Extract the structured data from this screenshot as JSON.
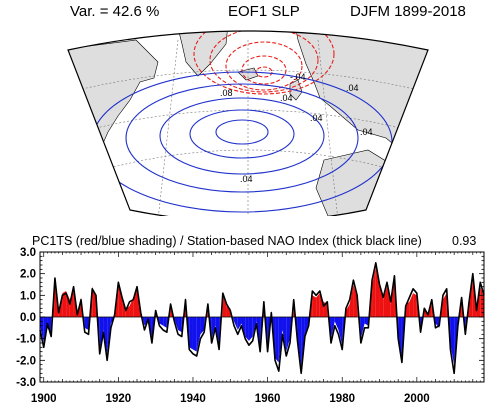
{
  "header": {
    "variance": "Var. = 42.6 %",
    "title": "EOF1 SLP",
    "period": "DJFM 1899-2018"
  },
  "map": {
    "contour_labels": [
      "-.04",
      ".04",
      ".08",
      ".04",
      ".04",
      ".04",
      ".04"
    ],
    "colors": {
      "land": "#dedede",
      "negative_contours": "#e8201c",
      "positive_contours": "#2233cc"
    }
  },
  "timeseries": {
    "title": "PC1TS (red/blue shading) / Station-based NAO Index (thick black line)",
    "correlation": "0.93"
  },
  "chart_data": {
    "type": "area",
    "title": "PC1TS (red/blue shading) / Station-based NAO Index (thick black line)",
    "xlabel": "",
    "ylabel": "",
    "xlim": [
      1899,
      2018
    ],
    "ylim": [
      -3.0,
      3.0
    ],
    "x_ticks": [
      "1900",
      "1920",
      "1940",
      "1960",
      "1980",
      "2000"
    ],
    "y_ticks": [
      "3.0",
      "2.0",
      "1.0",
      "0.0",
      "-1.0",
      "-2.0",
      "-3.0"
    ],
    "grid": false,
    "colors": {
      "positive": "#ee1111",
      "negative": "#1111ee",
      "line": "#000000"
    },
    "x": [
      1899,
      1900,
      1901,
      1902,
      1903,
      1904,
      1905,
      1906,
      1907,
      1908,
      1909,
      1910,
      1911,
      1912,
      1913,
      1914,
      1915,
      1916,
      1917,
      1918,
      1919,
      1920,
      1921,
      1922,
      1923,
      1924,
      1925,
      1926,
      1927,
      1928,
      1929,
      1930,
      1931,
      1932,
      1933,
      1934,
      1935,
      1936,
      1937,
      1938,
      1939,
      1940,
      1941,
      1942,
      1943,
      1944,
      1945,
      1946,
      1947,
      1948,
      1949,
      1950,
      1951,
      1952,
      1953,
      1954,
      1955,
      1956,
      1957,
      1958,
      1959,
      1960,
      1961,
      1962,
      1963,
      1964,
      1965,
      1966,
      1967,
      1968,
      1969,
      1970,
      1971,
      1972,
      1973,
      1974,
      1975,
      1976,
      1977,
      1978,
      1979,
      1980,
      1981,
      1982,
      1983,
      1984,
      1985,
      1986,
      1987,
      1988,
      1989,
      1990,
      1991,
      1992,
      1993,
      1994,
      1995,
      1996,
      1997,
      1998,
      1999,
      2000,
      2001,
      2002,
      2003,
      2004,
      2005,
      2006,
      2007,
      2008,
      2009,
      2010,
      2011,
      2012,
      2013,
      2014,
      2015,
      2016,
      2017,
      2018
    ],
    "series": [
      {
        "name": "PC1TS",
        "values": [
          -0.4,
          -1.2,
          -0.5,
          -0.8,
          1.6,
          0.3,
          1.1,
          1.2,
          0.8,
          1.3,
          0.2,
          0.9,
          -0.5,
          -0.6,
          1.4,
          0.9,
          -1.5,
          -0.6,
          -1.7,
          -0.3,
          0.0,
          1.5,
          1.0,
          0.4,
          0.5,
          0.9,
          1.3,
          0.3,
          -0.4,
          -0.2,
          -1.0,
          0.2,
          -0.3,
          -0.4,
          -0.5,
          0.4,
          -0.1,
          -0.6,
          -0.7,
          0.9,
          -1.4,
          -1.5,
          -1.6,
          -0.8,
          -0.6,
          0.5,
          -1.0,
          -0.4,
          -1.3,
          1.0,
          0.5,
          0.4,
          -0.2,
          -0.6,
          -0.3,
          -0.9,
          -1.1,
          -0.9,
          -0.2,
          -1.4,
          0.6,
          -1.4,
          0.3,
          -1.9,
          -2.1,
          -0.6,
          -1.6,
          -1.0,
          0.6,
          -0.9,
          -2.3,
          -0.8,
          -0.3,
          1.0,
          0.9,
          1.1,
          0.7,
          0.6,
          -1.0,
          -0.2,
          -0.6,
          -1.3,
          0.3,
          0.6,
          1.5,
          0.9,
          -1.0,
          -0.3,
          -0.4,
          1.5,
          2.3,
          1.6,
          0.8,
          1.4,
          0.6,
          1.7,
          -0.8,
          -2.0,
          0.6,
          0.7,
          1.1,
          1.0,
          -0.6,
          0.3,
          0.2,
          0.6,
          -0.3,
          -0.5,
          0.8,
          1.1,
          -1.3,
          -2.2,
          -0.6,
          0.8,
          -0.6,
          0.6,
          1.8,
          0.4,
          1.4,
          0.9
        ]
      },
      {
        "name": "Station-based NAO Index",
        "values": [
          -0.6,
          -1.4,
          -0.3,
          -0.9,
          1.8,
          0.2,
          1.0,
          1.1,
          0.6,
          1.4,
          0.1,
          0.8,
          -0.7,
          -0.8,
          1.3,
          1.0,
          -1.7,
          -0.7,
          -2.0,
          -0.5,
          0.1,
          1.6,
          0.9,
          0.3,
          0.7,
          0.8,
          1.4,
          0.2,
          -0.6,
          -0.1,
          -1.2,
          0.3,
          -0.4,
          -0.6,
          -0.7,
          0.6,
          -0.2,
          -0.8,
          -0.9,
          0.8,
          -1.5,
          -1.7,
          -1.8,
          -1.0,
          -0.7,
          0.6,
          -1.2,
          -0.5,
          -1.5,
          1.1,
          0.6,
          0.3,
          -0.4,
          -0.8,
          -0.4,
          -1.0,
          -1.3,
          -1.1,
          -0.3,
          -1.6,
          0.7,
          -1.6,
          0.2,
          -2.0,
          -2.5,
          -0.8,
          -1.8,
          -1.2,
          0.8,
          -1.1,
          -2.6,
          -0.9,
          -0.4,
          1.2,
          1.0,
          1.2,
          0.5,
          0.7,
          -1.2,
          -0.4,
          -0.8,
          -1.5,
          0.4,
          0.8,
          1.7,
          1.0,
          -1.2,
          -0.5,
          -0.5,
          1.7,
          2.5,
          1.5,
          0.9,
          1.6,
          0.7,
          1.9,
          -1.0,
          -2.1,
          0.5,
          0.9,
          1.3,
          1.1,
          -0.7,
          0.4,
          0.1,
          0.8,
          -0.5,
          -0.4,
          1.0,
          1.3,
          -1.5,
          -2.6,
          -0.4,
          0.9,
          -0.8,
          0.7,
          2.0,
          0.3,
          1.6,
          1.0
        ]
      }
    ]
  }
}
